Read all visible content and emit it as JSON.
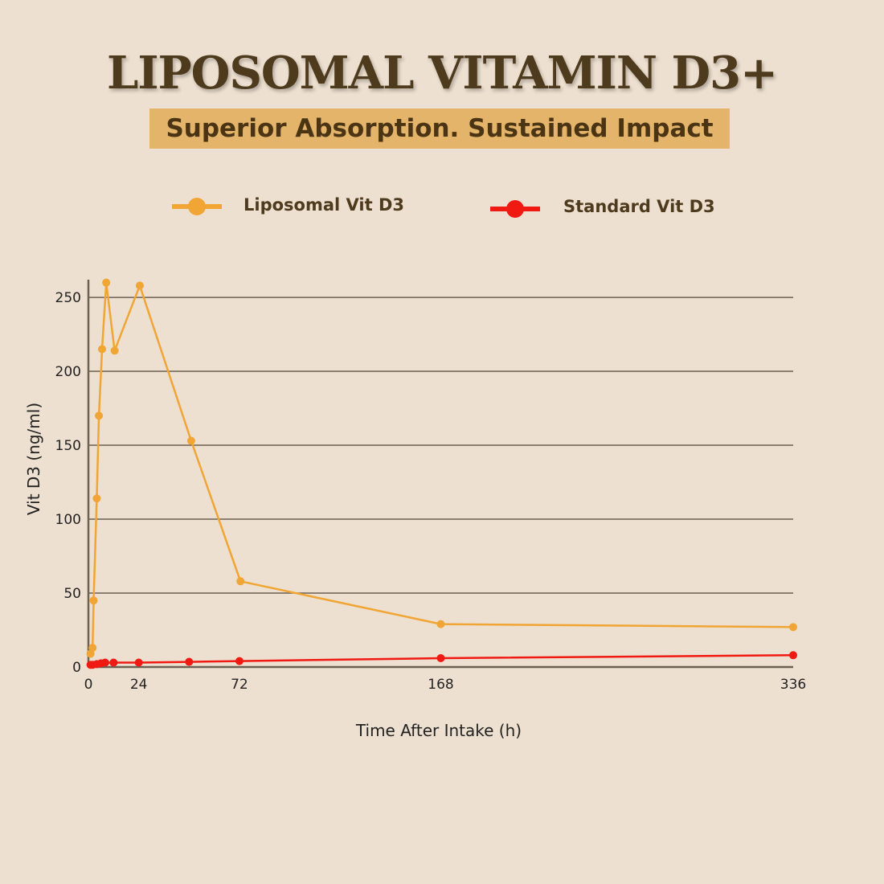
{
  "header": {
    "title": "LIPOSOMAL VITAMIN D3+",
    "subtitle": "Superior Absorption. Sustained Impact"
  },
  "chart_data": {
    "type": "line",
    "xlabel": "Time After Intake (h)",
    "ylabel": "Vit D3 (ng/ml)",
    "xlim": [
      0,
      336
    ],
    "ylim": [
      0,
      262
    ],
    "xticks": [
      0,
      24,
      72,
      168,
      336
    ],
    "yticks": [
      0,
      50,
      100,
      150,
      200,
      250
    ],
    "grid": "horizontal",
    "legend_position": "top",
    "series": [
      {
        "name": "Liposomal Vit D3",
        "color": "#f0a534",
        "points": [
          [
            1,
            9
          ],
          [
            2,
            13
          ],
          [
            2.5,
            45
          ],
          [
            4,
            114
          ],
          [
            5,
            170
          ],
          [
            6.5,
            215
          ],
          [
            8.5,
            260
          ],
          [
            12.5,
            214
          ],
          [
            24.5,
            258
          ],
          [
            49,
            153
          ],
          [
            72.5,
            58
          ],
          [
            168,
            29
          ],
          [
            336,
            27
          ]
        ]
      },
      {
        "name": "Standard Vit D3",
        "color": "#f01a12",
        "points": [
          [
            1,
            1.5
          ],
          [
            2,
            1.5
          ],
          [
            4,
            2
          ],
          [
            6,
            2.5
          ],
          [
            8,
            3
          ],
          [
            12,
            3
          ],
          [
            24,
            3
          ],
          [
            48,
            3.5
          ],
          [
            72,
            4
          ],
          [
            168,
            6
          ],
          [
            336,
            8
          ]
        ]
      }
    ]
  }
}
